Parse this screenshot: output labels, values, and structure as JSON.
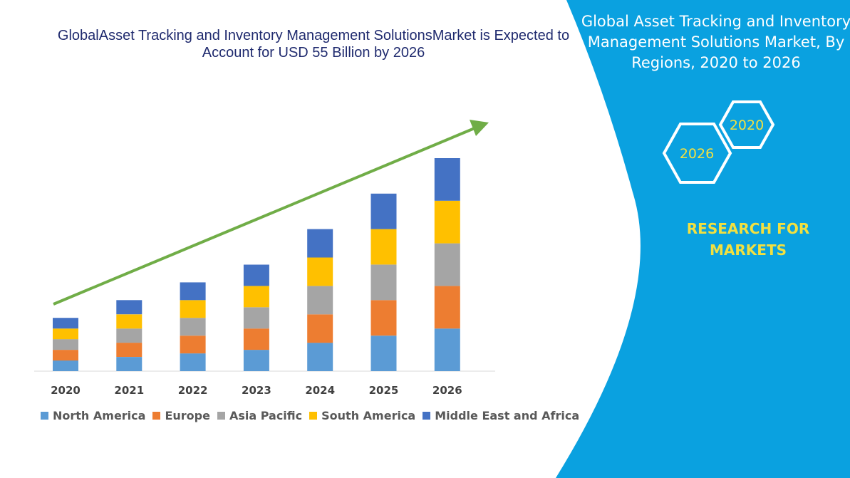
{
  "chart_data": {
    "type": "bar",
    "stacked": true,
    "title": "GlobalAsset Tracking and Inventory Management SolutionsMarket is Expected to Account for USD 55 Billion by 2026",
    "categories": [
      "2020",
      "2021",
      "2022",
      "2023",
      "2024",
      "2025",
      "2026"
    ],
    "series": [
      {
        "name": "North America",
        "color": "#5b9bd5",
        "values": [
          15,
          20,
          25,
          30,
          40,
          50,
          60
        ]
      },
      {
        "name": "Europe",
        "color": "#ed7d31",
        "values": [
          15,
          20,
          25,
          30,
          40,
          50,
          60
        ]
      },
      {
        "name": "Asia Pacific",
        "color": "#a5a5a5",
        "values": [
          15,
          20,
          25,
          30,
          40,
          50,
          60
        ]
      },
      {
        "name": "South America",
        "color": "#ffc000",
        "values": [
          15,
          20,
          25,
          30,
          40,
          50,
          60
        ]
      },
      {
        "name": "Middle East and Africa",
        "color": "#4472c4",
        "values": [
          15,
          20,
          25,
          30,
          40,
          50,
          60
        ]
      }
    ],
    "ylim": [
      0,
      310
    ],
    "grid": false,
    "legend_position": "bottom",
    "trend_arrow_color": "#70ad47"
  },
  "side_panel": {
    "title": "Global Asset Tracking and Inventory Management Solutions Market, By Regions, 2020 to 2026",
    "hex_badges": [
      "2020",
      "2026"
    ],
    "brand": "RESEARCH FOR MARKETS",
    "background_color": "#0aa1e0",
    "accent_color": "#f2e040"
  }
}
